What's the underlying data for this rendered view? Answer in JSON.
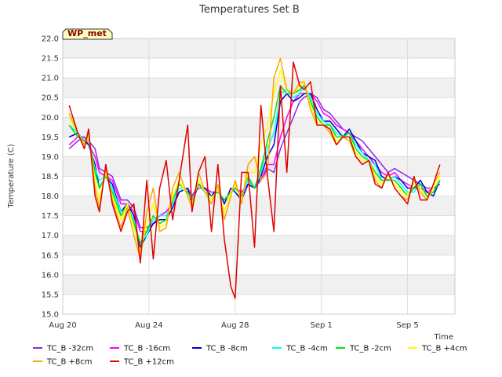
{
  "chart_data": {
    "type": "line",
    "title": "Temperatures Set B",
    "xlabel": "Time",
    "ylabel": "Temperature (C)",
    "badge": "WP_met",
    "x_range_days": [
      0,
      18.2
    ],
    "ylim": [
      15.0,
      22.0
    ],
    "y_ticks": [
      "15.0",
      "15.5",
      "16.0",
      "16.5",
      "17.0",
      "17.5",
      "18.0",
      "18.5",
      "19.0",
      "19.5",
      "20.0",
      "20.5",
      "21.0",
      "21.5",
      "22.0"
    ],
    "x_ticks": [
      {
        "day": 0,
        "label": "Aug 20"
      },
      {
        "day": 4,
        "label": "Aug 24"
      },
      {
        "day": 8,
        "label": "Aug 28"
      },
      {
        "day": 12,
        "label": "Sep 1"
      },
      {
        "day": 16,
        "label": "Sep 5"
      }
    ],
    "grid": true,
    "legend_position": "bottom",
    "x": [
      0.3,
      0.7,
      1.0,
      1.2,
      1.5,
      1.7,
      2.0,
      2.3,
      2.7,
      3.0,
      3.3,
      3.6,
      3.9,
      4.2,
      4.5,
      4.8,
      5.1,
      5.4,
      5.8,
      6.0,
      6.3,
      6.6,
      6.9,
      7.2,
      7.5,
      7.8,
      8.0,
      8.3,
      8.6,
      8.9,
      9.2,
      9.5,
      9.8,
      10.1,
      10.4,
      10.7,
      11.0,
      11.2,
      11.5,
      11.8,
      12.1,
      12.4,
      12.7,
      13.0,
      13.3,
      13.6,
      13.9,
      14.2,
      14.5,
      14.8,
      15.1,
      15.4,
      15.7,
      16.0,
      16.3,
      16.6,
      16.9,
      17.2,
      17.5
    ],
    "series": [
      {
        "name": "TC_B -32cm",
        "color": "#8a2be2",
        "values": [
          19.2,
          19.4,
          19.5,
          19.4,
          19.2,
          18.7,
          18.6,
          18.5,
          17.9,
          17.9,
          17.7,
          17.2,
          17.2,
          17.3,
          17.5,
          17.6,
          17.8,
          18.1,
          18.2,
          18.0,
          18.3,
          18.2,
          18.1,
          18.1,
          17.9,
          18.1,
          18.2,
          18.1,
          18.3,
          18.2,
          18.4,
          18.7,
          18.6,
          19.2,
          19.6,
          20.0,
          20.4,
          20.5,
          20.6,
          20.5,
          20.2,
          20.1,
          19.9,
          19.7,
          19.6,
          19.5,
          19.4,
          19.2,
          19.0,
          18.8,
          18.6,
          18.7,
          18.6,
          18.5,
          18.4,
          18.3,
          18.2,
          18.2,
          18.3
        ]
      },
      {
        "name": "TC_B -16cm",
        "color": "#ff00ff",
        "values": [
          19.3,
          19.5,
          19.5,
          19.3,
          19.0,
          18.6,
          18.5,
          18.4,
          17.8,
          17.8,
          17.6,
          17.1,
          17.1,
          17.3,
          17.5,
          17.6,
          17.8,
          18.1,
          18.2,
          18.0,
          18.2,
          18.2,
          18.1,
          18.1,
          17.9,
          18.1,
          18.2,
          18.1,
          18.3,
          18.2,
          18.4,
          18.8,
          18.8,
          19.5,
          20.0,
          20.4,
          20.6,
          20.6,
          20.6,
          20.4,
          20.1,
          20.0,
          19.8,
          19.7,
          19.6,
          19.4,
          19.2,
          19.0,
          18.8,
          18.6,
          18.5,
          18.6,
          18.4,
          18.3,
          18.2,
          18.2,
          18.1,
          18.2,
          18.3
        ]
      },
      {
        "name": "TC_B -8cm",
        "color": "#0000cd",
        "values": [
          19.5,
          19.6,
          19.4,
          19.3,
          18.8,
          18.2,
          18.5,
          18.3,
          17.6,
          17.8,
          17.5,
          16.7,
          17.0,
          17.3,
          17.4,
          17.4,
          17.7,
          18.1,
          18.2,
          17.8,
          18.3,
          18.2,
          18.0,
          18.2,
          17.8,
          18.2,
          18.1,
          17.9,
          18.3,
          18.2,
          18.5,
          19.0,
          19.3,
          20.4,
          20.6,
          20.4,
          20.5,
          20.6,
          20.6,
          20.2,
          19.9,
          19.9,
          19.7,
          19.5,
          19.7,
          19.4,
          19.1,
          19.0,
          18.9,
          18.5,
          18.4,
          18.5,
          18.4,
          18.2,
          18.2,
          18.4,
          18.1,
          18.0,
          18.4
        ]
      },
      {
        "name": "TC_B -4cm",
        "color": "#00ffff",
        "values": [
          19.8,
          19.6,
          19.4,
          19.4,
          18.7,
          18.4,
          18.5,
          18.2,
          17.6,
          17.7,
          17.4,
          16.8,
          17.0,
          17.4,
          17.5,
          17.5,
          17.8,
          18.2,
          18.1,
          17.9,
          18.3,
          18.1,
          18.0,
          18.1,
          17.9,
          18.1,
          18.2,
          18.0,
          18.4,
          18.2,
          18.6,
          19.2,
          19.6,
          20.6,
          20.7,
          20.5,
          20.6,
          20.8,
          20.5,
          20.1,
          19.9,
          19.8,
          19.6,
          19.5,
          19.6,
          19.3,
          19.1,
          18.9,
          18.8,
          18.4,
          18.4,
          18.5,
          18.3,
          18.1,
          18.1,
          18.3,
          18.0,
          18.1,
          18.4
        ]
      },
      {
        "name": "TC_B -2cm",
        "color": "#00e400",
        "values": [
          19.8,
          19.5,
          19.4,
          19.5,
          18.6,
          18.2,
          18.5,
          18.1,
          17.5,
          17.8,
          17.3,
          16.8,
          17.1,
          17.5,
          17.3,
          17.4,
          17.9,
          18.3,
          18.1,
          17.9,
          18.3,
          18.1,
          18.0,
          18.1,
          17.9,
          18.1,
          18.2,
          18.0,
          18.5,
          18.2,
          18.7,
          19.4,
          20.0,
          20.8,
          20.6,
          20.6,
          20.7,
          20.8,
          20.4,
          20.0,
          19.8,
          19.8,
          19.5,
          19.5,
          19.6,
          19.2,
          19.0,
          18.9,
          18.6,
          18.4,
          18.4,
          18.4,
          18.2,
          18.0,
          18.2,
          18.3,
          18.0,
          18.1,
          18.4
        ]
      },
      {
        "name": "TC_B +4cm",
        "color": "#ffff00",
        "values": [
          20.0,
          19.6,
          19.3,
          19.5,
          18.4,
          17.9,
          18.6,
          18.0,
          17.4,
          17.8,
          17.2,
          16.6,
          17.3,
          17.8,
          17.2,
          17.3,
          18.0,
          18.4,
          18.0,
          17.8,
          18.4,
          18.1,
          17.9,
          18.2,
          17.6,
          18.1,
          18.3,
          17.9,
          18.6,
          18.6,
          19.3,
          19.8,
          20.6,
          21.2,
          20.7,
          20.6,
          20.8,
          20.9,
          20.3,
          19.9,
          19.8,
          19.7,
          19.4,
          19.5,
          19.5,
          19.1,
          18.9,
          18.9,
          18.5,
          18.3,
          18.5,
          18.3,
          18.1,
          18.0,
          18.3,
          18.2,
          17.9,
          18.2,
          18.5
        ]
      },
      {
        "name": "TC_B +8cm",
        "color": "#ffa500",
        "values": [
          20.1,
          19.6,
          19.3,
          19.6,
          18.2,
          17.7,
          18.7,
          17.9,
          17.2,
          17.7,
          17.0,
          16.4,
          17.6,
          18.2,
          17.1,
          17.2,
          18.2,
          18.6,
          18.0,
          17.7,
          18.6,
          18.1,
          17.8,
          18.3,
          17.4,
          18.0,
          18.4,
          17.8,
          18.8,
          19.0,
          18.4,
          18.6,
          21.0,
          21.5,
          20.7,
          20.6,
          20.9,
          20.9,
          20.2,
          19.8,
          19.8,
          19.6,
          19.3,
          19.5,
          19.4,
          19.0,
          18.8,
          18.9,
          18.4,
          18.2,
          18.6,
          18.2,
          18.0,
          17.9,
          18.4,
          18.1,
          17.9,
          18.3,
          18.6
        ]
      },
      {
        "name": "TC_B +12cm",
        "color": "#e00000",
        "values": [
          20.3,
          19.6,
          19.2,
          19.7,
          18.0,
          17.6,
          18.8,
          17.8,
          17.1,
          17.6,
          17.8,
          16.3,
          18.4,
          16.4,
          18.2,
          18.9,
          17.4,
          18.4,
          19.8,
          17.6,
          18.6,
          19.0,
          17.1,
          18.8,
          16.9,
          15.7,
          15.4,
          18.6,
          18.6,
          16.7,
          20.3,
          18.5,
          17.1,
          20.8,
          18.6,
          21.4,
          20.8,
          20.7,
          20.9,
          19.8,
          19.8,
          19.7,
          19.3,
          19.5,
          19.5,
          19.0,
          18.8,
          18.9,
          18.3,
          18.2,
          18.6,
          18.2,
          18.0,
          17.8,
          18.5,
          17.9,
          17.9,
          18.3,
          18.8
        ]
      }
    ]
  }
}
